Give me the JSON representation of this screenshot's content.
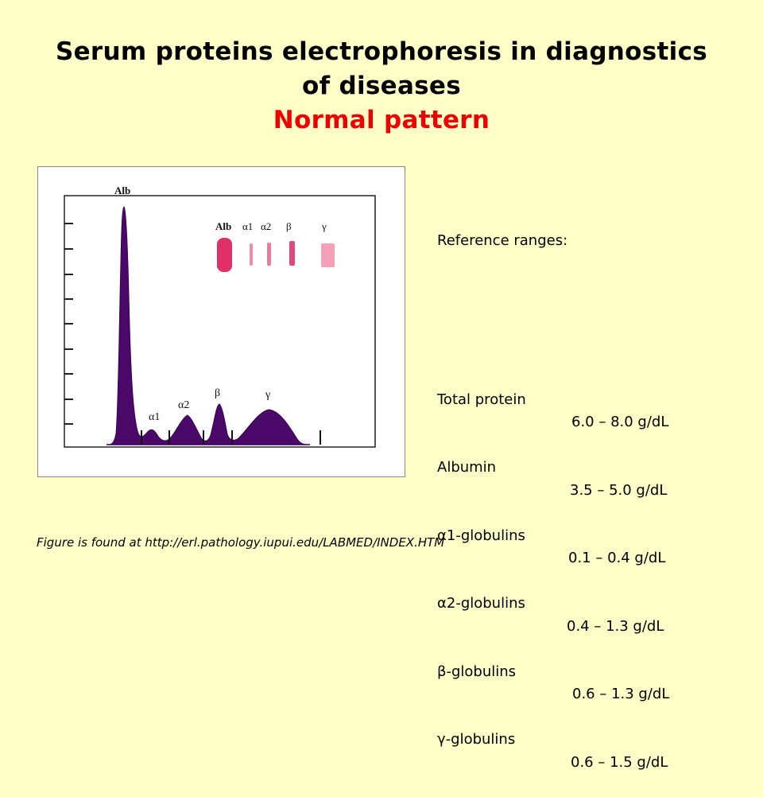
{
  "title": {
    "line1": "Serum proteins electrophoresis in diagnostics",
    "line2": "of diseases",
    "subtitle": "Normal pattern"
  },
  "figure": {
    "peak_labels": [
      "Alb",
      "α1",
      "α2",
      "β",
      "γ"
    ],
    "gel_labels": [
      "Alb",
      "α1",
      "α2",
      "β",
      "γ"
    ],
    "colors": {
      "fill": "#4a0868",
      "band": "#e0306a"
    }
  },
  "reference": {
    "heading": "Reference ranges:",
    "rows": [
      {
        "name": "Total protein",
        "range": "6.0 – 8.0 g/dL"
      },
      {
        "name": "Albumin",
        "range": "3.5 – 5.0 g/dL"
      },
      {
        "name": "α1-globulins",
        "range": "0.1 – 0.4 g/dL"
      },
      {
        "name": "α2-globulins",
        "range": "0.4 – 1.3 g/dL"
      },
      {
        "name": "β-globulins",
        "range": "0.6 – 1.3 g/dL"
      },
      {
        "name": "γ-globulins",
        "range": "0.6 – 1.5 g/dL"
      }
    ]
  },
  "footnote": "Figure is found at http://erl.pathology.iupui.edu/LABMED/INDEX.HTM"
}
